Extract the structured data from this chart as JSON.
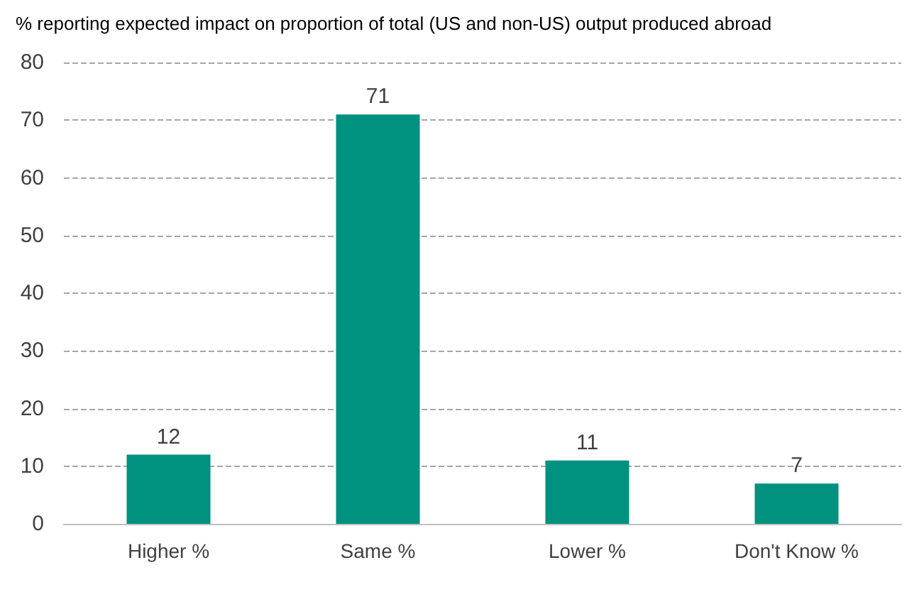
{
  "chart_data": {
    "type": "bar",
    "title": "% reporting expected impact on proportion of total (US and non-US) output produced abroad",
    "categories": [
      "Higher %",
      "Same %",
      "Lower %",
      "Don't Know %"
    ],
    "values": [
      12,
      71,
      11,
      7
    ],
    "color": "#00917f",
    "ylim": [
      0,
      80
    ],
    "yticks": [
      0,
      10,
      20,
      30,
      40,
      50,
      60,
      70,
      80
    ],
    "grid": "y",
    "data_labels": true
  }
}
